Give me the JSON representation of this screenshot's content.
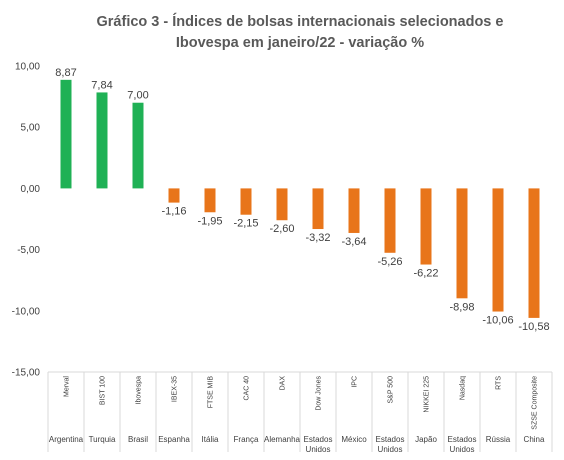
{
  "chart_data": {
    "type": "bar",
    "title_lines": [
      "Gráfico 3 - Índices de bolsas internacionais selecionados e",
      "Ibovespa em janeiro/22 - variação %"
    ],
    "ylim": [
      -15,
      10
    ],
    "ytick_labels": [
      "10,00",
      "5,00",
      "0,00",
      "-5,00",
      "-10,00",
      "-15,00"
    ],
    "ytick_values": [
      10,
      5,
      0,
      -5,
      -10,
      -15
    ],
    "grid": false,
    "positive_color": "#1fb155",
    "negative_color": "#e8751a",
    "categories": [
      {
        "index": "Merval",
        "country": [
          "Argentina"
        ],
        "value": 8.87,
        "label": "8,87"
      },
      {
        "index": "BIST 100",
        "country": [
          "Turquia"
        ],
        "value": 7.84,
        "label": "7,84"
      },
      {
        "index": "Ibovespa",
        "country": [
          "Brasil"
        ],
        "value": 7.0,
        "label": "7,00"
      },
      {
        "index": "IBEX-35",
        "country": [
          "Espanha"
        ],
        "value": -1.16,
        "label": "-1,16"
      },
      {
        "index": "FTSE MIB",
        "country": [
          "Itália"
        ],
        "value": -1.95,
        "label": "-1,95"
      },
      {
        "index": "CAC 40",
        "country": [
          "França"
        ],
        "value": -2.15,
        "label": "-2,15"
      },
      {
        "index": "DAX",
        "country": [
          "Alemanha"
        ],
        "value": -2.6,
        "label": "-2,60"
      },
      {
        "index": "Dow Jones",
        "country": [
          "Estados",
          "Unidos"
        ],
        "value": -3.32,
        "label": "-3,32"
      },
      {
        "index": "IPC",
        "country": [
          "México"
        ],
        "value": -3.64,
        "label": "-3,64"
      },
      {
        "index": "S&P 500",
        "country": [
          "Estados",
          "Unidos"
        ],
        "value": -5.26,
        "label": "-5,26"
      },
      {
        "index": "NIKKEI 225",
        "country": [
          "Japão"
        ],
        "value": -6.22,
        "label": "-6,22"
      },
      {
        "index": "Nasdaq",
        "country": [
          "Estados",
          "Unidos"
        ],
        "value": -8.98,
        "label": "-8,98"
      },
      {
        "index": "RTS",
        "country": [
          "Rússia"
        ],
        "value": -10.06,
        "label": "-10,06"
      },
      {
        "index": "SZSE Composite",
        "country": [
          "China"
        ],
        "value": -10.58,
        "label": "-10,58"
      }
    ]
  }
}
